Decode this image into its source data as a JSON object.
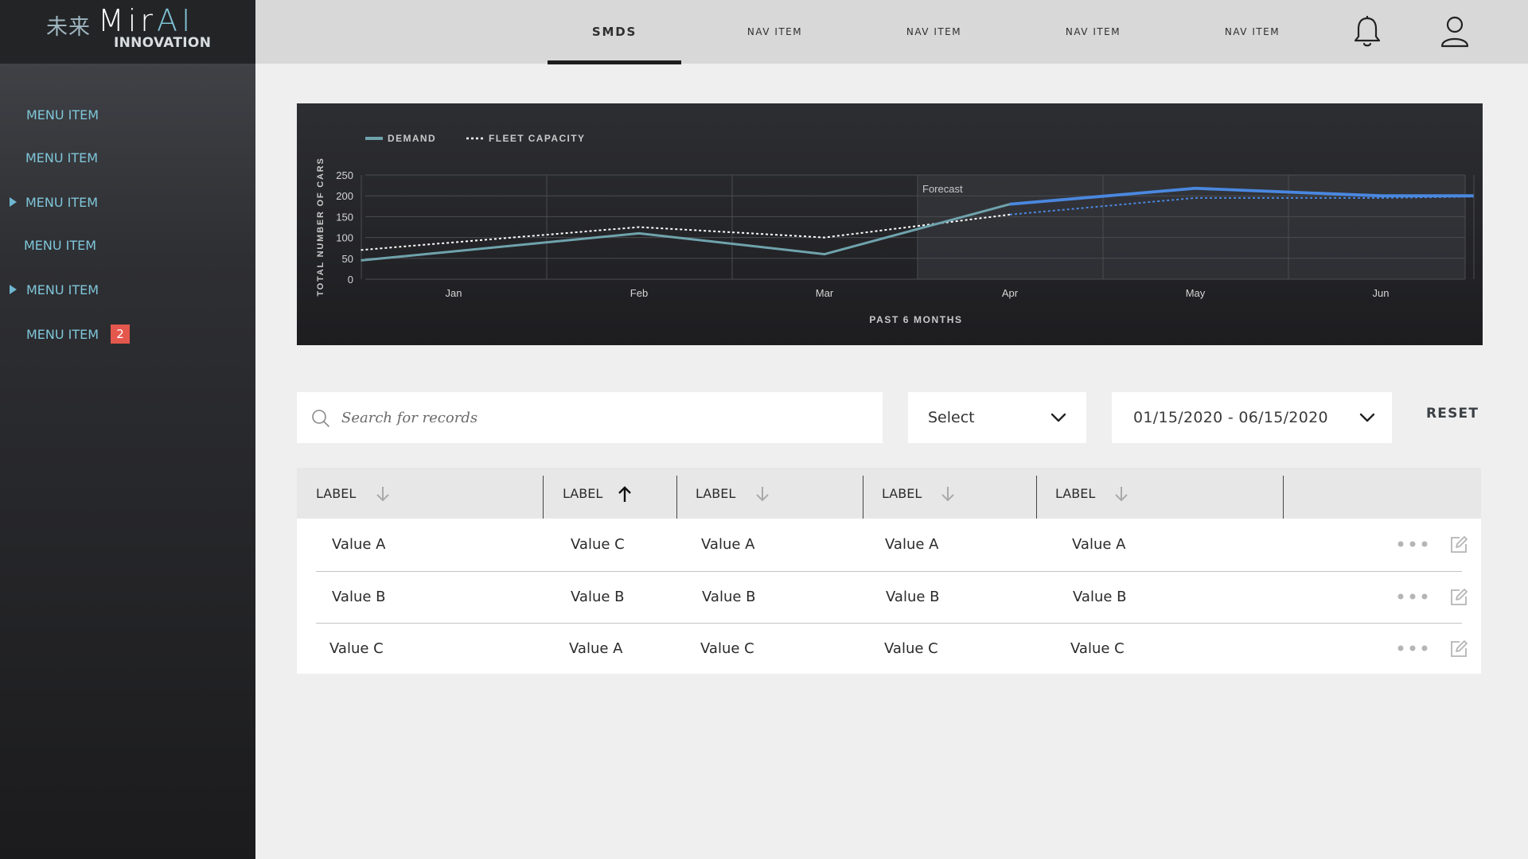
{
  "brand": {
    "kanji": "未来",
    "name_prefix": "Mir",
    "name_suffix": "AI",
    "subtitle": "INNOVATION"
  },
  "sidebar": {
    "items": [
      {
        "label": "MENU ITEM",
        "expandable": false
      },
      {
        "label": "MENU ITEM",
        "expandable": false
      },
      {
        "label": "MENU ITEM",
        "expandable": true
      },
      {
        "label": "MENU ITEM",
        "expandable": false
      },
      {
        "label": "MENU ITEM",
        "expandable": true
      },
      {
        "label": "MENU ITEM",
        "expandable": false,
        "badge": "2"
      }
    ]
  },
  "topnav": {
    "items": [
      "SMDS",
      "NAV ITEM",
      "NAV ITEM",
      "NAV ITEM",
      "NAV ITEM"
    ],
    "active_index": 0,
    "icons": [
      "bell-icon",
      "user-icon"
    ]
  },
  "chart_data": {
    "type": "line",
    "legend": [
      "DEMAND",
      "FLEET CAPACITY"
    ],
    "legend_position": "top-left",
    "xlabel": "PAST 6 MONTHS",
    "ylabel": "TOTAL NUMBER OF CARS",
    "categories": [
      "Jan",
      "Feb",
      "Mar",
      "Apr",
      "May",
      "Jun"
    ],
    "yticks": [
      0,
      50,
      100,
      150,
      200,
      250
    ],
    "ylim": [
      0,
      250
    ],
    "forecast_label": "Forecast",
    "series": [
      {
        "name": "DEMAND",
        "style": "solid",
        "x": [
          -0.5,
          1,
          2,
          3,
          4,
          5,
          5.5
        ],
        "values": [
          45,
          110,
          60,
          180,
          218,
          200,
          200
        ]
      },
      {
        "name": "FLEET CAPACITY",
        "style": "dotted",
        "x": [
          -0.5,
          1,
          2,
          3,
          4,
          5,
          5.5
        ],
        "values": [
          70,
          125,
          100,
          155,
          195,
          195,
          198
        ]
      }
    ],
    "forecast_from_x": 3,
    "grid": true,
    "colors": {
      "demand": "#6fa3ad",
      "capacity": "#ffffff",
      "forecast": "#4a88e0"
    }
  },
  "filters": {
    "search_placeholder": "Search for records",
    "select_value": "Select",
    "date_range": "01/15/2020 - 06/15/2020",
    "reset_label": "RESET"
  },
  "table": {
    "headers": [
      {
        "label": "LABEL",
        "sort": "down"
      },
      {
        "label": "LABEL",
        "sort": "up"
      },
      {
        "label": "LABEL",
        "sort": "down"
      },
      {
        "label": "LABEL",
        "sort": "down"
      },
      {
        "label": "LABEL",
        "sort": "down"
      }
    ],
    "rows": [
      [
        "Value A",
        "Value C",
        "Value A",
        "Value A",
        "Value A"
      ],
      [
        "Value B",
        "Value B",
        "Value B",
        "Value B",
        "Value B"
      ],
      [
        "Value C",
        "Value A",
        "Value C",
        "Value C",
        "Value C"
      ]
    ]
  }
}
